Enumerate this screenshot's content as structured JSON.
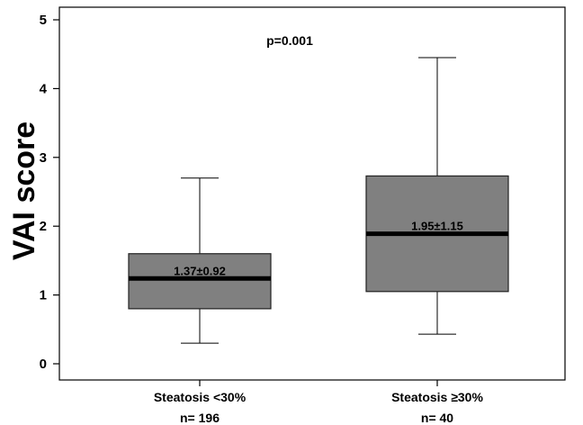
{
  "chart_data": {
    "type": "box",
    "title": "",
    "xlabel": "",
    "ylabel": "VAI score",
    "ylim": [
      0,
      5
    ],
    "yticks": [
      0,
      1,
      2,
      3,
      4,
      5
    ],
    "grid": false,
    "annotation": "p=0.001",
    "box_color": "#808080",
    "groups": [
      {
        "label": "Steatosis <30%",
        "n_label": "n= 196",
        "whisker_low": 0.3,
        "q1": 0.8,
        "median": 1.24,
        "q3": 1.6,
        "whisker_high": 2.7,
        "stat_label": "1.37±0.92"
      },
      {
        "label": "Steatosis ≥30%",
        "n_label": "n= 40",
        "whisker_low": 0.43,
        "q1": 1.05,
        "median": 1.89,
        "q3": 2.73,
        "whisker_high": 4.45,
        "stat_label": "1.95±1.15"
      }
    ]
  }
}
